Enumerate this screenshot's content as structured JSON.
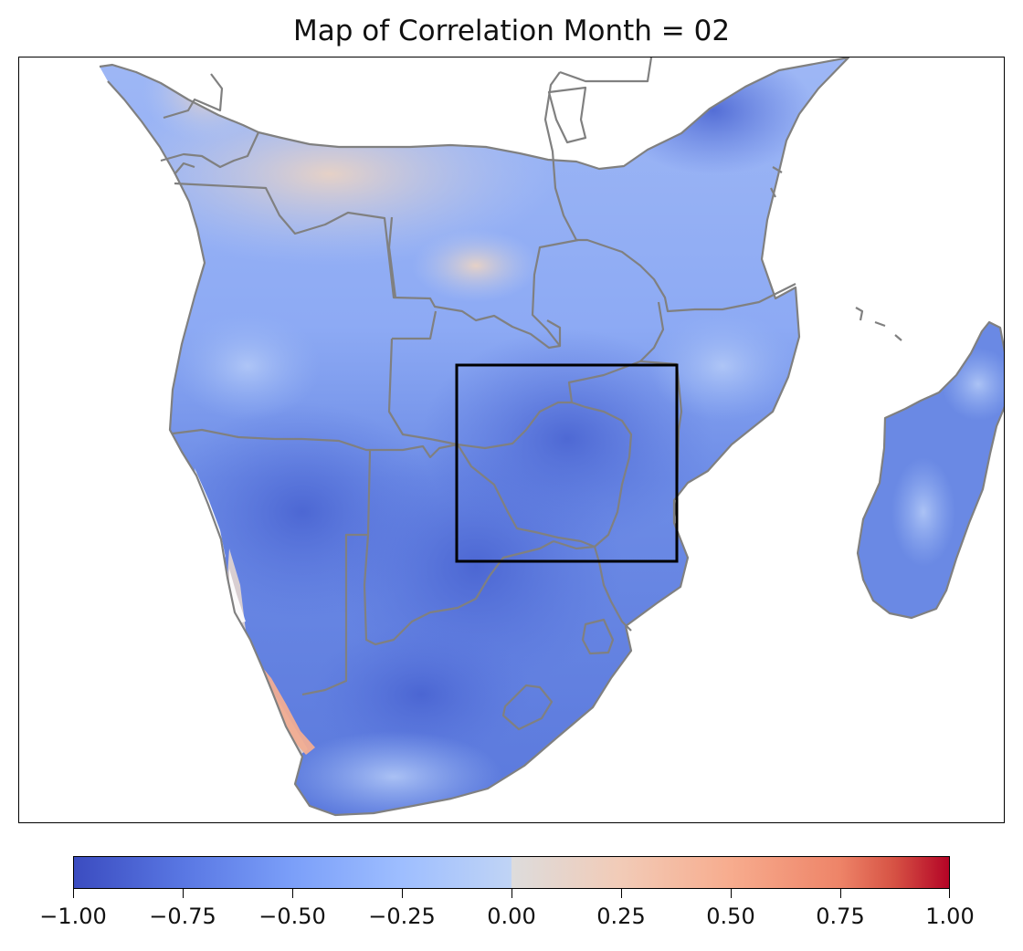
{
  "title": "Map of Correlation Month = 02",
  "colorbar": {
    "colormap": "coolwarm",
    "min": -1.0,
    "max": 1.0,
    "ticks": [
      "−1.00",
      "−0.75",
      "−0.50",
      "−0.25",
      "0.00",
      "0.25",
      "0.50",
      "0.75",
      "1.00"
    ]
  },
  "colors": {
    "land_dominant": "#6f8fe8",
    "land_strong_negative": "#4c66d6",
    "land_weak_negative": "#a8c2f7",
    "near_zero": "#e3dcd6",
    "positive": "#f2a58a",
    "border": "#808080",
    "box": "#000000"
  }
}
